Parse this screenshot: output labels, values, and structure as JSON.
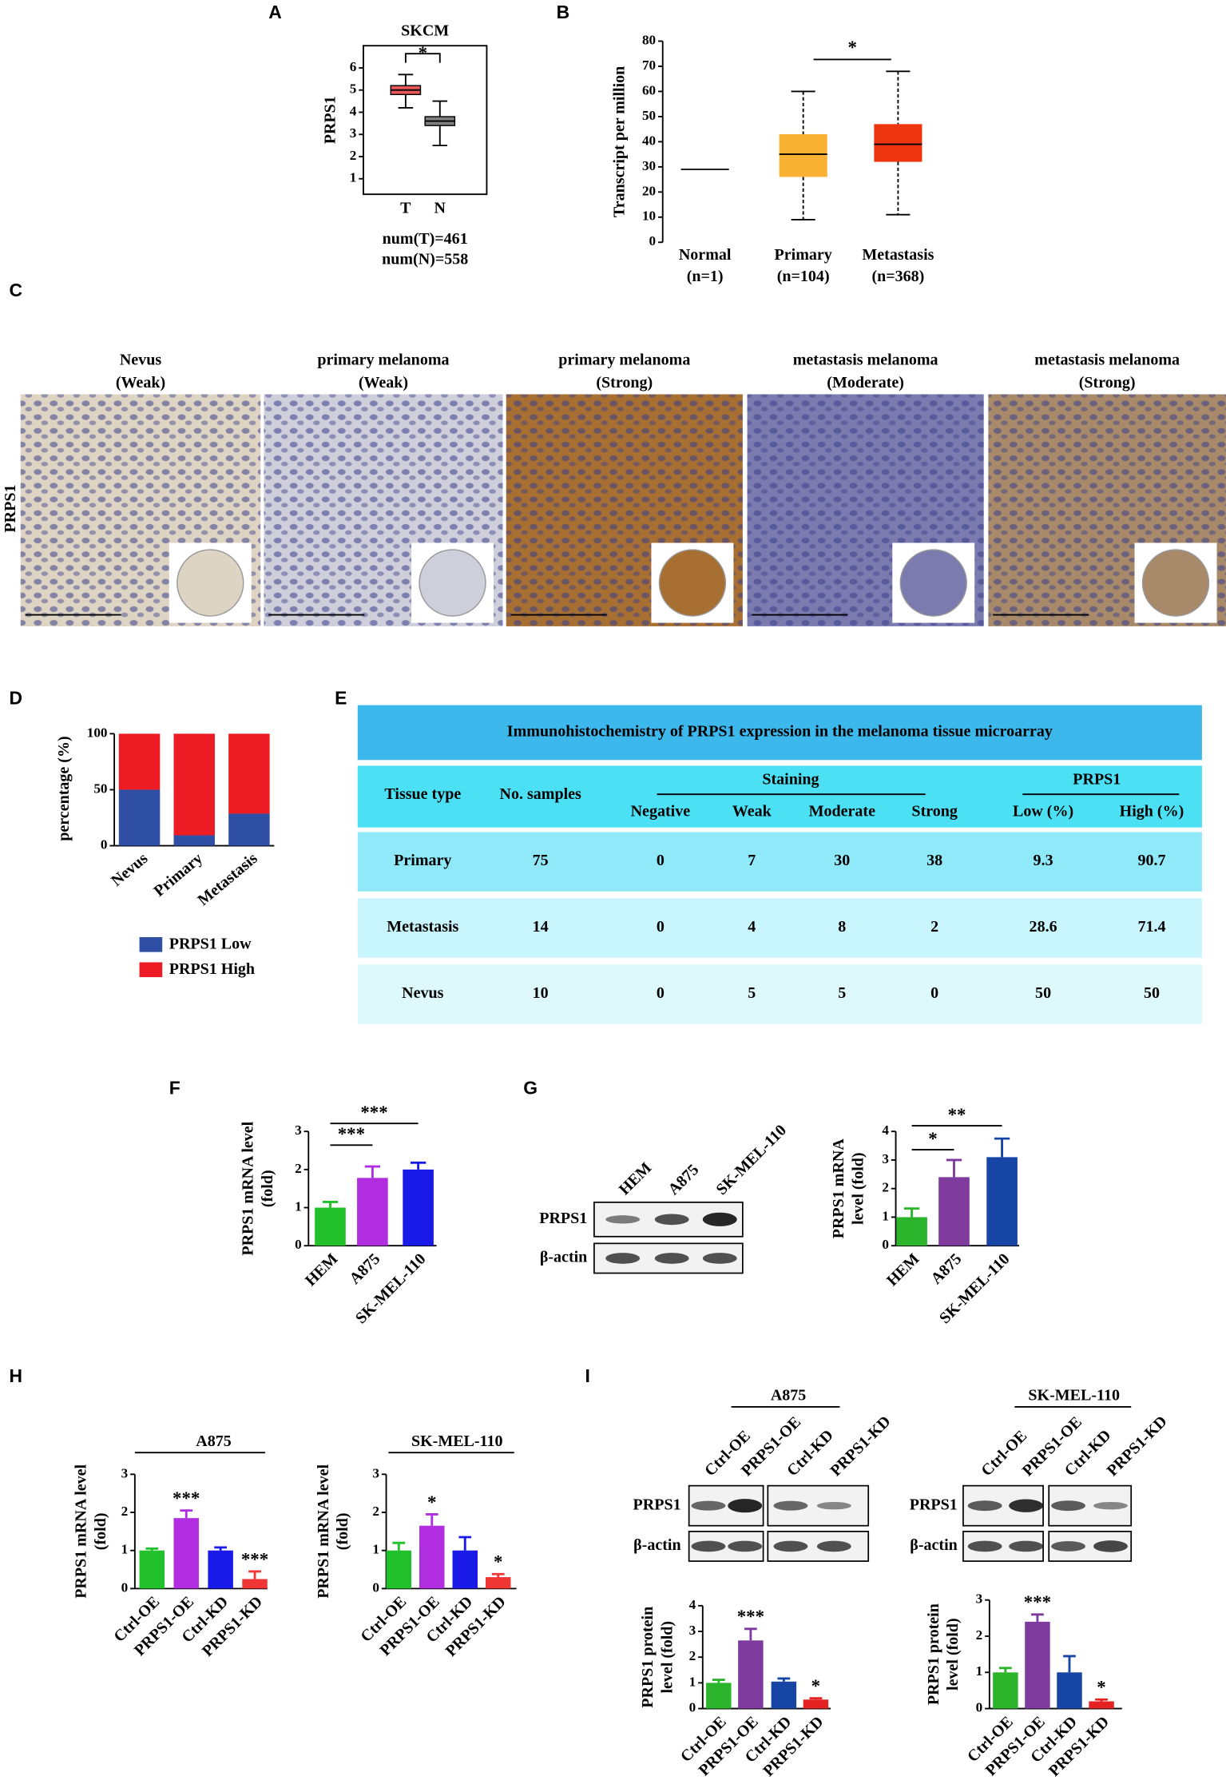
{
  "panel_labels": [
    "A",
    "B",
    "C",
    "D",
    "E",
    "F",
    "G",
    "H",
    "I"
  ],
  "chart_data": [
    {
      "type": "box",
      "title": "SKCM",
      "ylabel": "PRPS1",
      "categories": [
        "T",
        "N"
      ],
      "colors": [
        "#e8595a",
        "#808080"
      ],
      "boxes": [
        {
          "min": 4.2,
          "q1": 4.8,
          "median": 5.0,
          "q3": 5.2,
          "max": 5.7
        },
        {
          "min": 2.5,
          "q1": 3.4,
          "median": 3.6,
          "q3": 3.8,
          "max": 4.5
        }
      ],
      "ylim": [
        0.3,
        7.0
      ],
      "yticks": [
        1,
        2,
        3,
        4,
        5,
        6
      ],
      "significance": [
        "*"
      ],
      "notes": [
        "num(T)=461",
        "num(N)=558"
      ]
    },
    {
      "type": "box",
      "ylabel": "Transcript per million",
      "categories": [
        "Normal",
        "Primary",
        "Metastasis"
      ],
      "category_counts": [
        "(n=1)",
        "(n=104)",
        "(n=368)"
      ],
      "colors": [
        "#000000",
        "#f8b133",
        "#ee3512"
      ],
      "boxes": [
        {
          "median": 29
        },
        {
          "min": 9,
          "q1": 26,
          "median": 35,
          "q3": 43,
          "max": 60
        },
        {
          "min": 11,
          "q1": 32,
          "median": 39,
          "q3": 47,
          "max": 68
        }
      ],
      "ylim": [
        0,
        80
      ],
      "yticks": [
        0,
        10,
        20,
        30,
        40,
        50,
        60,
        70,
        80
      ],
      "significance": [
        "*"
      ]
    },
    {
      "type": "stacked_bar",
      "ylabel": "percentage (%)",
      "categories": [
        "Nevus",
        "Primary",
        "Metastasis"
      ],
      "series": [
        {
          "name": "PRPS1 Low",
          "color": "#2e4fa3",
          "values": [
            50,
            9.3,
            28.6
          ]
        },
        {
          "name": "PRPS1 High",
          "color": "#ed1c24",
          "values": [
            50,
            90.7,
            71.4
          ]
        }
      ],
      "ylim": [
        0,
        100
      ],
      "yticks": [
        0,
        50,
        100
      ]
    },
    {
      "type": "bar",
      "ylabel": [
        "PRPS1 mRNA level",
        "(fold)"
      ],
      "categories": [
        "HEM",
        "A875",
        "SK-MEL-110"
      ],
      "colors": [
        "#22c02a",
        "#b02ee0",
        "#1a1ae8"
      ],
      "values": [
        1.0,
        1.78,
        2.0
      ],
      "errors": [
        0.15,
        0.3,
        0.18
      ],
      "ylim": [
        0,
        3
      ],
      "yticks": [
        0,
        1,
        2,
        3
      ],
      "significance": [
        "***",
        "***"
      ]
    },
    {
      "type": "bar",
      "ylabel": [
        "PRPS1 mRNA",
        "level (fold)"
      ],
      "categories": [
        "HEM",
        "A875",
        "SK-MEL-110"
      ],
      "colors": [
        "#2cb52c",
        "#7f3a9e",
        "#1745a5"
      ],
      "values": [
        1.0,
        2.4,
        3.1
      ],
      "errors": [
        0.3,
        0.6,
        0.65
      ],
      "ylim": [
        0,
        4
      ],
      "yticks": [
        0,
        1,
        2,
        3,
        4
      ],
      "significance": [
        "*",
        "**"
      ]
    },
    {
      "type": "bar",
      "title": "A875",
      "ylabel": [
        "PRPS1 mRNA level",
        "(fold)"
      ],
      "categories": [
        "Ctrl-OE",
        "PRPS1-OE",
        "Ctrl-KD",
        "PRPS1-KD"
      ],
      "colors": [
        "#22c02a",
        "#b02ee0",
        "#1a1ae8",
        "#f03535"
      ],
      "values": [
        1.0,
        1.85,
        1.0,
        0.25
      ],
      "errors": [
        0.05,
        0.2,
        0.08,
        0.2
      ],
      "annotations": [
        null,
        "***",
        null,
        "***"
      ],
      "ylim": [
        0,
        3
      ],
      "yticks": [
        0,
        1,
        2,
        3
      ]
    },
    {
      "type": "bar",
      "title": "SK-MEL-110",
      "ylabel": [
        "PRPS1 mRNA level",
        "(fold)"
      ],
      "categories": [
        "Ctrl-OE",
        "PRPS1-OE",
        "Ctrl-KD",
        "PRPS1-KD"
      ],
      "colors": [
        "#22c02a",
        "#b02ee0",
        "#1a1ae8",
        "#f03535"
      ],
      "values": [
        1.0,
        1.65,
        1.0,
        0.3
      ],
      "errors": [
        0.2,
        0.3,
        0.35,
        0.08
      ],
      "annotations": [
        null,
        "*",
        null,
        "*"
      ],
      "ylim": [
        0,
        3
      ],
      "yticks": [
        0,
        1,
        2,
        3
      ]
    },
    {
      "type": "bar",
      "title": "A875",
      "ylabel": [
        "PRPS1 protein",
        "level (fold)"
      ],
      "categories": [
        "Ctrl-OE",
        "PRPS1-OE",
        "Ctrl-KD",
        "PRPS1-KD"
      ],
      "colors": [
        "#2cb52c",
        "#7f3a9e",
        "#1745a5",
        "#e52222"
      ],
      "values": [
        1.0,
        2.65,
        1.05,
        0.35
      ],
      "errors": [
        0.12,
        0.45,
        0.12,
        0.05
      ],
      "annotations": [
        null,
        "***",
        null,
        "*"
      ],
      "ylim": [
        0,
        4
      ],
      "yticks": [
        0,
        1,
        2,
        3,
        4
      ]
    },
    {
      "type": "bar",
      "title": "SK-MEL-110",
      "ylabel": [
        "PRPS1 protein",
        "level (fold)"
      ],
      "categories": [
        "Ctrl-OE",
        "PRPS1-OE",
        "Ctrl-KD",
        "PRPS1-KD"
      ],
      "colors": [
        "#2cb52c",
        "#7f3a9e",
        "#1745a5",
        "#e52222"
      ],
      "values": [
        1.0,
        2.4,
        1.0,
        0.2
      ],
      "errors": [
        0.12,
        0.2,
        0.45,
        0.05
      ],
      "annotations": [
        null,
        "***",
        null,
        "*"
      ],
      "ylim": [
        0,
        3
      ],
      "yticks": [
        0,
        1,
        2,
        3
      ]
    }
  ],
  "ihc": {
    "stain_label": "PRPS1",
    "images": [
      {
        "title": "Nevus",
        "grade": "(Weak)"
      },
      {
        "title": "primary melanoma",
        "grade": "(Weak)"
      },
      {
        "title": "primary melanoma",
        "grade": "(Strong)"
      },
      {
        "title": "metastasis melanoma",
        "grade": "(Moderate)"
      },
      {
        "title": "metastasis melanoma",
        "grade": "(Strong)"
      }
    ]
  },
  "table": {
    "title": "Immunohistochemistry of PRPS1 expression in the melanoma tissue microarray",
    "headers": [
      "Tissue type",
      "No. samples"
    ],
    "group_headers": [
      "Staining",
      "PRPS1"
    ],
    "subheaders": [
      "Negative",
      "Weak",
      "Moderate",
      "Strong",
      "Low (%)",
      "High (%)"
    ],
    "rows": [
      [
        "Primary",
        75,
        0,
        7,
        30,
        38,
        9.3,
        90.7
      ],
      [
        "Metastasis",
        14,
        0,
        4,
        8,
        2,
        28.6,
        71.4
      ],
      [
        "Nevus",
        10,
        0,
        5,
        5,
        0,
        50,
        50
      ]
    ]
  },
  "blots": [
    {
      "lanes": [
        "HEM",
        "A875",
        "SK-MEL-110"
      ],
      "rows": [
        "PRPS1",
        "β-actin"
      ]
    },
    {
      "lanes": [
        "Ctrl-OE",
        "PRPS1-OE",
        "Ctrl-KD",
        "PRPS1-KD"
      ],
      "rows": [
        "PRPS1",
        "β-actin"
      ]
    },
    {
      "lanes": [
        "Ctrl-OE",
        "PRPS1-OE",
        "Ctrl-KD",
        "PRPS1-KD"
      ],
      "rows": [
        "PRPS1",
        "β-actin"
      ]
    }
  ]
}
